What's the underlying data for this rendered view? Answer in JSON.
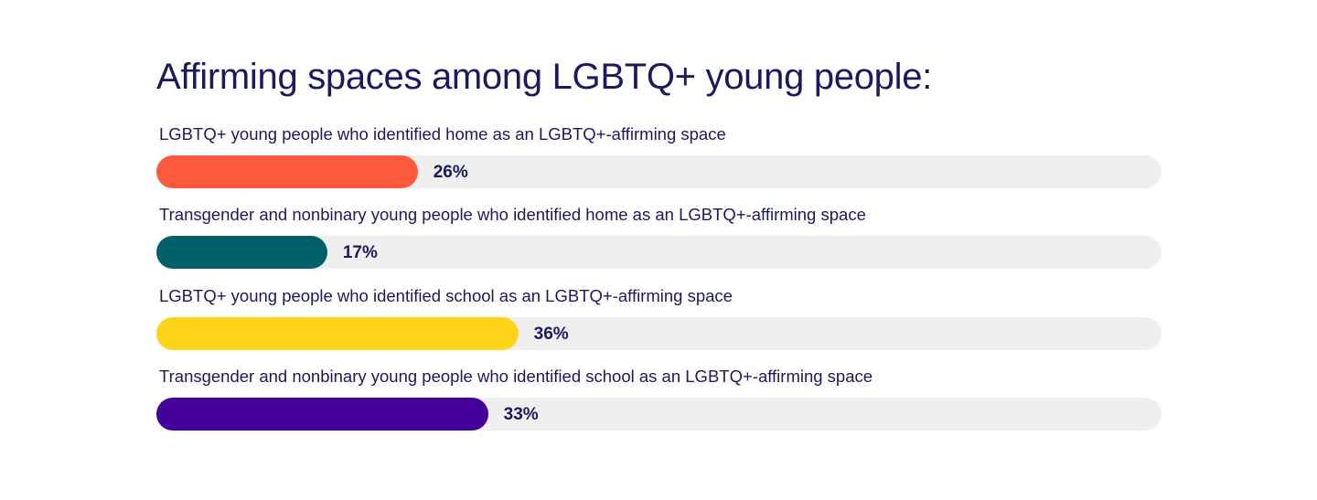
{
  "chart_data": {
    "type": "bar",
    "orientation": "horizontal",
    "title": "Affirming spaces among LGBTQ+ young people:",
    "xlim": [
      0,
      100
    ],
    "grid": false,
    "categories": [
      "LGBTQ+ young people who identified home as an LGBTQ+-affirming space",
      "Transgender and nonbinary young people who identified home as an LGBTQ+-affirming space",
      "LGBTQ+ young people who identified school as an LGBTQ+-affirming space",
      "Transgender and nonbinary young people who identified school as an LGBTQ+-affirming space"
    ],
    "values": [
      26,
      17,
      36,
      33
    ],
    "value_labels": [
      "26%",
      "17%",
      "36%",
      "33%"
    ],
    "colors": [
      "#ff5a3c",
      "#00616a",
      "#fed418",
      "#43009a"
    ],
    "track_color": "#efefef"
  }
}
